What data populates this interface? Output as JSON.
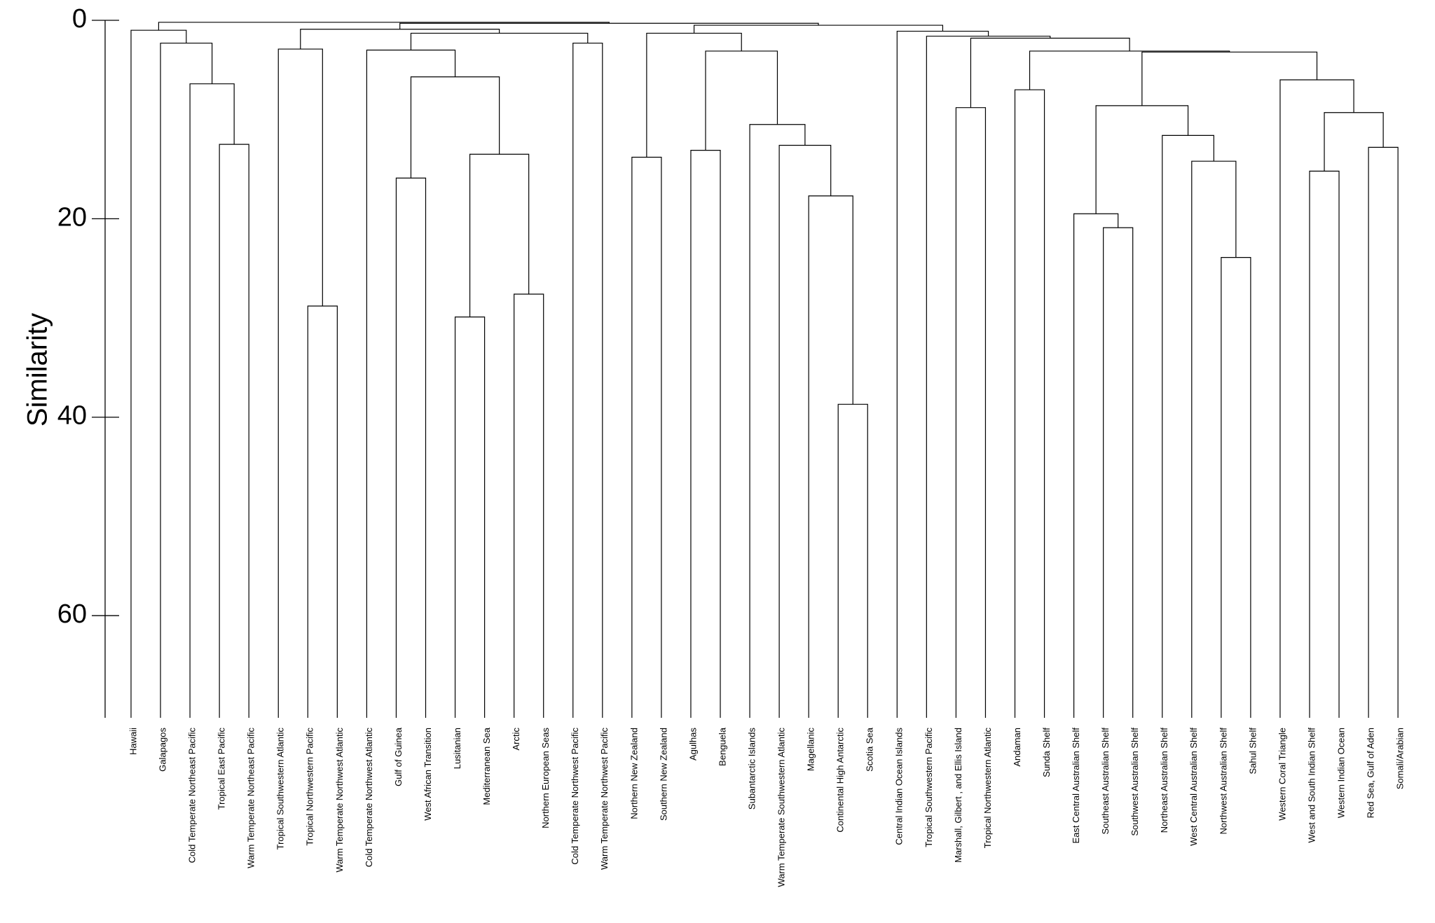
{
  "chart_data": {
    "type": "dendrogram",
    "y_label": "Similarity",
    "ylim": [
      0,
      70.3
    ],
    "y_inverted": true,
    "yticks": [
      0,
      20,
      40,
      60
    ],
    "color": "#000000",
    "labels": [
      "Hawaii",
      "Galapagos",
      "Cold Temperate Northeast Pacific",
      "Tropical East Pacific",
      "Warm Temperate Northeast Pacific",
      "Tropical Southwestern Atlantic",
      "Tropical Northwestern Pacific",
      "Warm Temperate Northwest Atlantic",
      "Cold Temperate Northwest Atlantic",
      "Gulf of Guinea",
      "West African Transition",
      "Lusitanian",
      "Mediterranean Sea",
      "Arctic",
      "Northern European Seas",
      "Cold Temperate Northwest Pacific",
      "Warm Temperate Northwest Pacific",
      "Northern New Zealand",
      "Southern New Zealand",
      "Agulhas",
      "Benguela",
      "Subantarctic Islands",
      "Warm Temperate Southwestern Atlantic",
      "Magellanic",
      "Continental High Antarctic",
      "Scotia Sea",
      "Central Indian Ocean Islands",
      "Tropical Southwestern Pacific",
      "Marshall, Gilbert , and Ellis Island",
      "Tropical Northwestern Atlantic",
      "Andaman",
      "Sunda Shelf",
      "East Central Australian Shelf",
      "Southeast Australian Shelf",
      "Southwest Australian Shelf",
      "Northeast Australian Shelf",
      "West Central Australian Shelf",
      "Northwest Australian Shelf",
      "Sahul Shelf",
      "Western Coral Triangle",
      "West and South Indian Shelf",
      "Western Indian Ocean",
      "Red Sea, Gulf of Aden",
      "Somali/Arabian"
    ],
    "merges": [
      {
        "children": [
          3,
          4
        ],
        "height": 12.5
      },
      {
        "children": [
          2,
          44
        ],
        "height": 6.4
      },
      {
        "children": [
          1,
          45
        ],
        "height": 2.3
      },
      {
        "children": [
          0,
          46
        ],
        "height": 1.0
      },
      {
        "children": [
          6,
          7
        ],
        "height": 28.8
      },
      {
        "children": [
          5,
          48
        ],
        "height": 2.9
      },
      {
        "children": [
          11,
          12
        ],
        "height": 29.9
      },
      {
        "children": [
          13,
          14
        ],
        "height": 27.6
      },
      {
        "children": [
          50,
          51
        ],
        "height": 13.5
      },
      {
        "children": [
          9,
          10
        ],
        "height": 15.9
      },
      {
        "children": [
          53,
          52
        ],
        "height": 5.7
      },
      {
        "children": [
          8,
          54
        ],
        "height": 3.0
      },
      {
        "children": [
          15,
          16
        ],
        "height": 2.3
      },
      {
        "children": [
          55,
          56
        ],
        "height": 1.3
      },
      {
        "children": [
          49,
          57
        ],
        "height": 0.9
      },
      {
        "children": [
          24,
          25
        ],
        "height": 38.7
      },
      {
        "children": [
          23,
          59
        ],
        "height": 17.7
      },
      {
        "children": [
          22,
          60
        ],
        "height": 12.6
      },
      {
        "children": [
          21,
          61
        ],
        "height": 10.5
      },
      {
        "children": [
          19,
          20
        ],
        "height": 13.1
      },
      {
        "children": [
          63,
          62
        ],
        "height": 3.1
      },
      {
        "children": [
          17,
          18
        ],
        "height": 13.8
      },
      {
        "children": [
          65,
          64
        ],
        "height": 1.3
      },
      {
        "children": [
          28,
          29
        ],
        "height": 8.8
      },
      {
        "children": [
          30,
          31
        ],
        "height": 7.0
      },
      {
        "children": [
          33,
          34
        ],
        "height": 20.9
      },
      {
        "children": [
          32,
          69
        ],
        "height": 19.5
      },
      {
        "children": [
          37,
          38
        ],
        "height": 23.9
      },
      {
        "children": [
          36,
          71
        ],
        "height": 14.2
      },
      {
        "children": [
          35,
          72
        ],
        "height": 11.6
      },
      {
        "children": [
          70,
          73
        ],
        "height": 8.6
      },
      {
        "children": [
          40,
          41
        ],
        "height": 15.2
      },
      {
        "children": [
          42,
          43
        ],
        "height": 12.8
      },
      {
        "children": [
          75,
          76
        ],
        "height": 9.3
      },
      {
        "children": [
          39,
          77
        ],
        "height": 6.0
      },
      {
        "children": [
          74,
          78
        ],
        "height": 3.2
      },
      {
        "children": [
          68,
          79
        ],
        "height": 3.1
      },
      {
        "children": [
          67,
          80
        ],
        "height": 1.8
      },
      {
        "children": [
          27,
          81
        ],
        "height": 1.6
      },
      {
        "children": [
          26,
          82
        ],
        "height": 1.1
      },
      {
        "children": [
          66,
          83
        ],
        "height": 0.5
      },
      {
        "children": [
          58,
          84
        ],
        "height": 0.3
      },
      {
        "children": [
          47,
          85
        ],
        "height": 0.2
      }
    ]
  }
}
